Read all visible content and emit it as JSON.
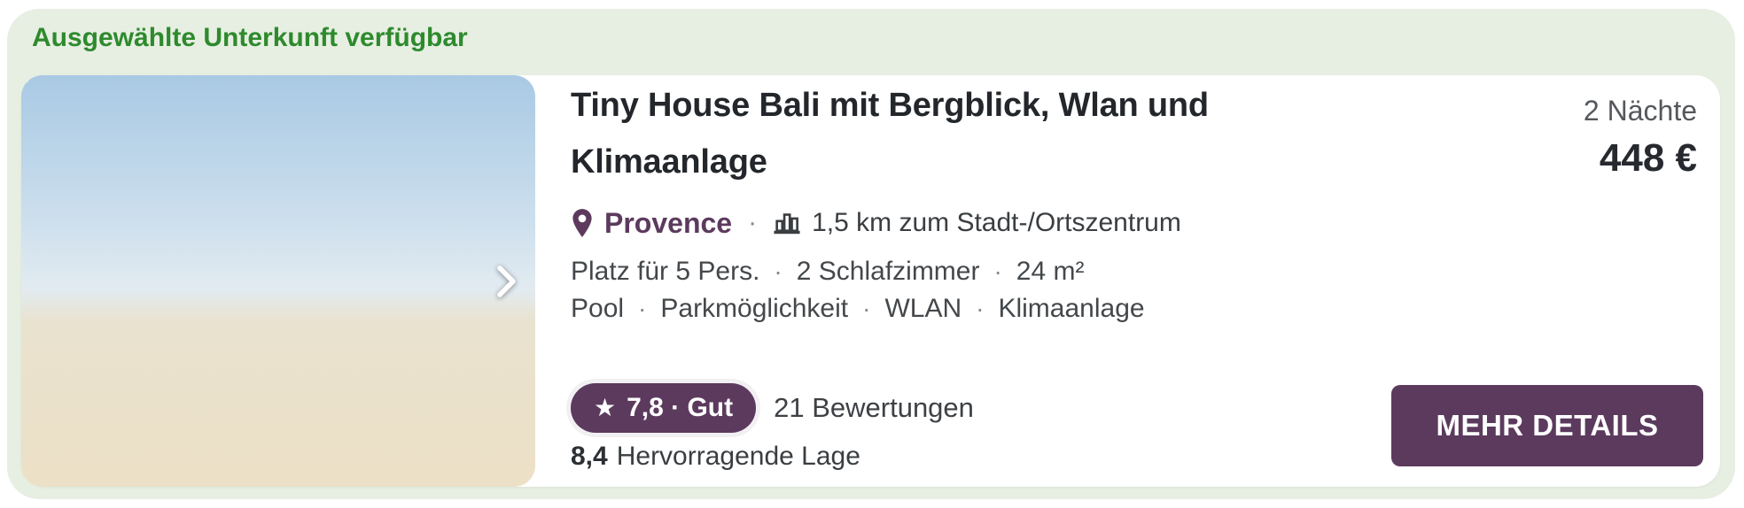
{
  "separator": "·",
  "panel": {
    "heading": "Ausgewählte Unterkunft verfügbar"
  },
  "property": {
    "title": "Tiny House Bali mit Bergblick, Wlan und Klimaanlage",
    "location_name": "Provence",
    "distance": "1,5 km zum Stadt-/Ortszentrum",
    "facts": [
      "Platz für 5 Pers.",
      "2 Schlafzimmer",
      "24 m²"
    ],
    "amenities": [
      "Pool",
      "Parkmöglichkeit",
      "WLAN",
      "Klimaanlage"
    ],
    "rating_badge": "7,8 · Gut",
    "reviews": "21 Bewertungen",
    "location_score": "8,4",
    "location_score_label": "Hervorragende Lage",
    "nights": "2 Nächte",
    "price": "448 €",
    "cta": "MEHR DETAILS"
  },
  "icons": {
    "rating_star": "★",
    "location_pin": "map-pin",
    "city_distance": "city-skyline",
    "photo_next": "chevron-right"
  },
  "colors": {
    "brand_green": "#2e8a2d",
    "panel_bg": "#e7efe3",
    "accent_purple": "#5c3a5e",
    "text_dark": "#23262b",
    "text_gray": "#44484b"
  }
}
